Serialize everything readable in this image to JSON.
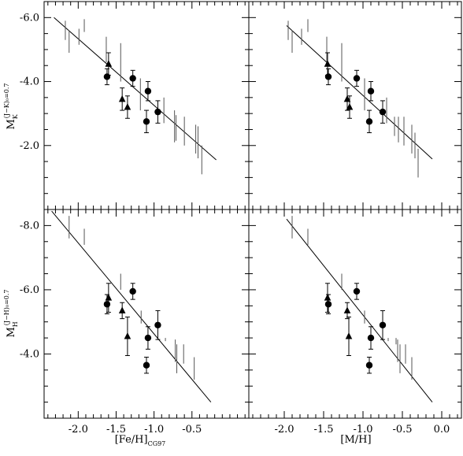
{
  "figure": {
    "xlabels": [
      {
        "main": "[Fe/H]",
        "sub": "CG97"
      },
      {
        "main": "[M/H]",
        "sub": ""
      }
    ],
    "ylabels": [
      {
        "main": "M",
        "sub": "K",
        "sup": "(J−K)₀=0.7"
      },
      {
        "main": "M",
        "sub": "H",
        "sup": "(J−H)₀=0.7"
      }
    ]
  },
  "chart_data": [
    {
      "type": "scatter",
      "panel": "top-left",
      "xlim": [
        -2.45,
        0.25
      ],
      "ylim": [
        0.0,
        -6.5
      ],
      "xticks": [
        -2.0,
        -1.5,
        -1.0,
        -0.5
      ],
      "xtick_labels": [],
      "yticks": [
        -2.0,
        -4.0,
        -6.0
      ],
      "ytick_labels": [
        "-2.0",
        "-4.0",
        "-6.0"
      ],
      "fit_line": {
        "x": [
          -2.32,
          -0.18
        ],
        "y": [
          -6.0,
          -1.55
        ]
      },
      "circles": [
        {
          "x": -1.62,
          "y": -4.15,
          "err": 0.25
        },
        {
          "x": -1.28,
          "y": -4.1,
          "err": 0.25
        },
        {
          "x": -1.08,
          "y": -3.7,
          "err": 0.3
        },
        {
          "x": -1.1,
          "y": -2.75,
          "err": 0.35
        },
        {
          "x": -0.95,
          "y": -3.05,
          "err": 0.35
        }
      ],
      "triangles": [
        {
          "x": -1.6,
          "y": -4.55,
          "err": 0.35
        },
        {
          "x": -1.42,
          "y": -3.45,
          "err": 0.35
        },
        {
          "x": -1.35,
          "y": -3.2,
          "err": 0.35
        }
      ],
      "bars": [
        {
          "x": -2.17,
          "y": -5.6,
          "err": 0.3
        },
        {
          "x": -2.12,
          "y": -5.25,
          "err": 0.35
        },
        {
          "x": -1.99,
          "y": -5.4,
          "err": 0.25
        },
        {
          "x": -1.92,
          "y": -5.75,
          "err": 0.2
        },
        {
          "x": -1.63,
          "y": -5.0,
          "err": 0.4
        },
        {
          "x": -1.44,
          "y": -4.6,
          "err": 0.6
        },
        {
          "x": -1.18,
          "y": -3.6,
          "err": 0.5
        },
        {
          "x": -0.87,
          "y": -3.1,
          "err": 0.4
        },
        {
          "x": -0.73,
          "y": -2.6,
          "err": 0.5
        },
        {
          "x": -0.71,
          "y": -2.55,
          "err": 0.4
        },
        {
          "x": -0.6,
          "y": -2.45,
          "err": 0.45
        },
        {
          "x": -0.45,
          "y": -2.2,
          "err": 0.45
        },
        {
          "x": -0.42,
          "y": -2.1,
          "err": 0.5
        },
        {
          "x": -0.37,
          "y": -1.55,
          "err": 0.45
        }
      ]
    },
    {
      "type": "scatter",
      "panel": "top-right",
      "xlim": [
        -2.45,
        0.25
      ],
      "ylim": [
        0.0,
        -6.5
      ],
      "xticks": [
        -2.0,
        -1.5,
        -1.0,
        -0.5,
        0.0
      ],
      "xtick_labels": [],
      "yticks": [
        -2.0,
        -4.0,
        -6.0
      ],
      "ytick_labels": [],
      "fit_line": {
        "x": [
          -1.97,
          -0.12
        ],
        "y": [
          -5.75,
          -1.58
        ]
      },
      "circles": [
        {
          "x": -1.44,
          "y": -4.15,
          "err": 0.25
        },
        {
          "x": -1.08,
          "y": -4.1,
          "err": 0.25
        },
        {
          "x": -0.9,
          "y": -3.7,
          "err": 0.3
        },
        {
          "x": -0.92,
          "y": -2.75,
          "err": 0.35
        },
        {
          "x": -0.75,
          "y": -3.05,
          "err": 0.35
        }
      ],
      "triangles": [
        {
          "x": -1.45,
          "y": -4.55,
          "err": 0.35
        },
        {
          "x": -1.2,
          "y": -3.45,
          "err": 0.35
        },
        {
          "x": -1.17,
          "y": -3.2,
          "err": 0.35
        }
      ],
      "bars": [
        {
          "x": -1.95,
          "y": -5.6,
          "err": 0.3
        },
        {
          "x": -1.9,
          "y": -5.25,
          "err": 0.35
        },
        {
          "x": -1.78,
          "y": -5.4,
          "err": 0.25
        },
        {
          "x": -1.7,
          "y": -5.75,
          "err": 0.2
        },
        {
          "x": -1.46,
          "y": -5.0,
          "err": 0.4
        },
        {
          "x": -1.27,
          "y": -4.6,
          "err": 0.6
        },
        {
          "x": -0.98,
          "y": -3.6,
          "err": 0.5
        },
        {
          "x": -0.7,
          "y": -3.1,
          "err": 0.4
        },
        {
          "x": -0.6,
          "y": -2.6,
          "err": 0.3
        },
        {
          "x": -0.55,
          "y": -2.5,
          "err": 0.4
        },
        {
          "x": -0.48,
          "y": -2.45,
          "err": 0.45
        },
        {
          "x": -0.38,
          "y": -2.2,
          "err": 0.45
        },
        {
          "x": -0.34,
          "y": -2.0,
          "err": 0.4
        },
        {
          "x": -0.3,
          "y": -1.45,
          "err": 0.45
        }
      ]
    },
    {
      "type": "scatter",
      "panel": "bottom-left",
      "xlim": [
        -2.45,
        0.25
      ],
      "ylim": [
        -2.0,
        -8.5
      ],
      "xticks": [
        -2.0,
        -1.5,
        -1.0,
        -0.5
      ],
      "xtick_labels": [
        "-2.0",
        "-1.5",
        "-1.0",
        "-0.5"
      ],
      "yticks": [
        -4.0,
        -6.0,
        -8.0
      ],
      "ytick_labels": [
        "-4.0",
        "-6.0",
        "-8.0"
      ],
      "fit_line": {
        "x": [
          -2.35,
          -0.25
        ],
        "y": [
          -8.45,
          -2.5
        ]
      },
      "circles": [
        {
          "x": -1.62,
          "y": -5.55,
          "err": 0.3
        },
        {
          "x": -1.28,
          "y": -5.95,
          "err": 0.25
        },
        {
          "x": -0.95,
          "y": -4.9,
          "err": 0.45
        },
        {
          "x": -1.08,
          "y": -4.5,
          "err": 0.35
        },
        {
          "x": -1.1,
          "y": -3.65,
          "err": 0.25
        }
      ],
      "triangles": [
        {
          "x": -1.6,
          "y": -5.75,
          "err": 0.45
        },
        {
          "x": -1.42,
          "y": -5.35,
          "err": 0.25
        },
        {
          "x": -1.35,
          "y": -4.55,
          "err": 0.6
        }
      ],
      "bars": [
        {
          "x": -2.12,
          "y": -7.95,
          "err": 0.35
        },
        {
          "x": -1.92,
          "y": -7.65,
          "err": 0.25
        },
        {
          "x": -1.44,
          "y": -6.25,
          "err": 0.25
        },
        {
          "x": -1.17,
          "y": -5.15,
          "err": 0.2
        },
        {
          "x": -0.85,
          "y": -4.45,
          "err": 0.05
        },
        {
          "x": -0.72,
          "y": -4.1,
          "err": 0.35
        },
        {
          "x": -0.7,
          "y": -3.85,
          "err": 0.45
        },
        {
          "x": -0.61,
          "y": -4.0,
          "err": 0.3
        },
        {
          "x": -0.47,
          "y": -3.55,
          "err": 0.35
        }
      ]
    },
    {
      "type": "scatter",
      "panel": "bottom-right",
      "xlim": [
        -2.45,
        0.25
      ],
      "ylim": [
        -2.0,
        -8.5
      ],
      "xticks": [
        -2.0,
        -1.5,
        -1.0,
        -0.5,
        0.0
      ],
      "xtick_labels": [
        "-2.0",
        "-1.5",
        "-1.0",
        "-0.5",
        "0.0"
      ],
      "yticks": [
        -4.0,
        -6.0,
        -8.0
      ],
      "ytick_labels": [],
      "fit_line": {
        "x": [
          -1.97,
          -0.12
        ],
        "y": [
          -8.2,
          -2.5
        ]
      },
      "circles": [
        {
          "x": -1.44,
          "y": -5.55,
          "err": 0.3
        },
        {
          "x": -1.08,
          "y": -5.95,
          "err": 0.25
        },
        {
          "x": -0.75,
          "y": -4.9,
          "err": 0.45
        },
        {
          "x": -0.9,
          "y": -4.5,
          "err": 0.35
        },
        {
          "x": -0.92,
          "y": -3.65,
          "err": 0.25
        }
      ],
      "triangles": [
        {
          "x": -1.45,
          "y": -5.75,
          "err": 0.45
        },
        {
          "x": -1.2,
          "y": -5.35,
          "err": 0.25
        },
        {
          "x": -1.18,
          "y": -4.55,
          "err": 0.6
        }
      ],
      "bars": [
        {
          "x": -1.9,
          "y": -7.95,
          "err": 0.35
        },
        {
          "x": -1.7,
          "y": -7.65,
          "err": 0.25
        },
        {
          "x": -1.27,
          "y": -6.25,
          "err": 0.25
        },
        {
          "x": -0.98,
          "y": -5.15,
          "err": 0.2
        },
        {
          "x": -0.68,
          "y": -4.45,
          "err": 0.05
        },
        {
          "x": -0.58,
          "y": -4.4,
          "err": 0.1
        },
        {
          "x": -0.56,
          "y": -4.1,
          "err": 0.35
        },
        {
          "x": -0.53,
          "y": -3.85,
          "err": 0.45
        },
        {
          "x": -0.46,
          "y": -4.0,
          "err": 0.3
        },
        {
          "x": -0.38,
          "y": -3.55,
          "err": 0.35
        }
      ]
    }
  ]
}
